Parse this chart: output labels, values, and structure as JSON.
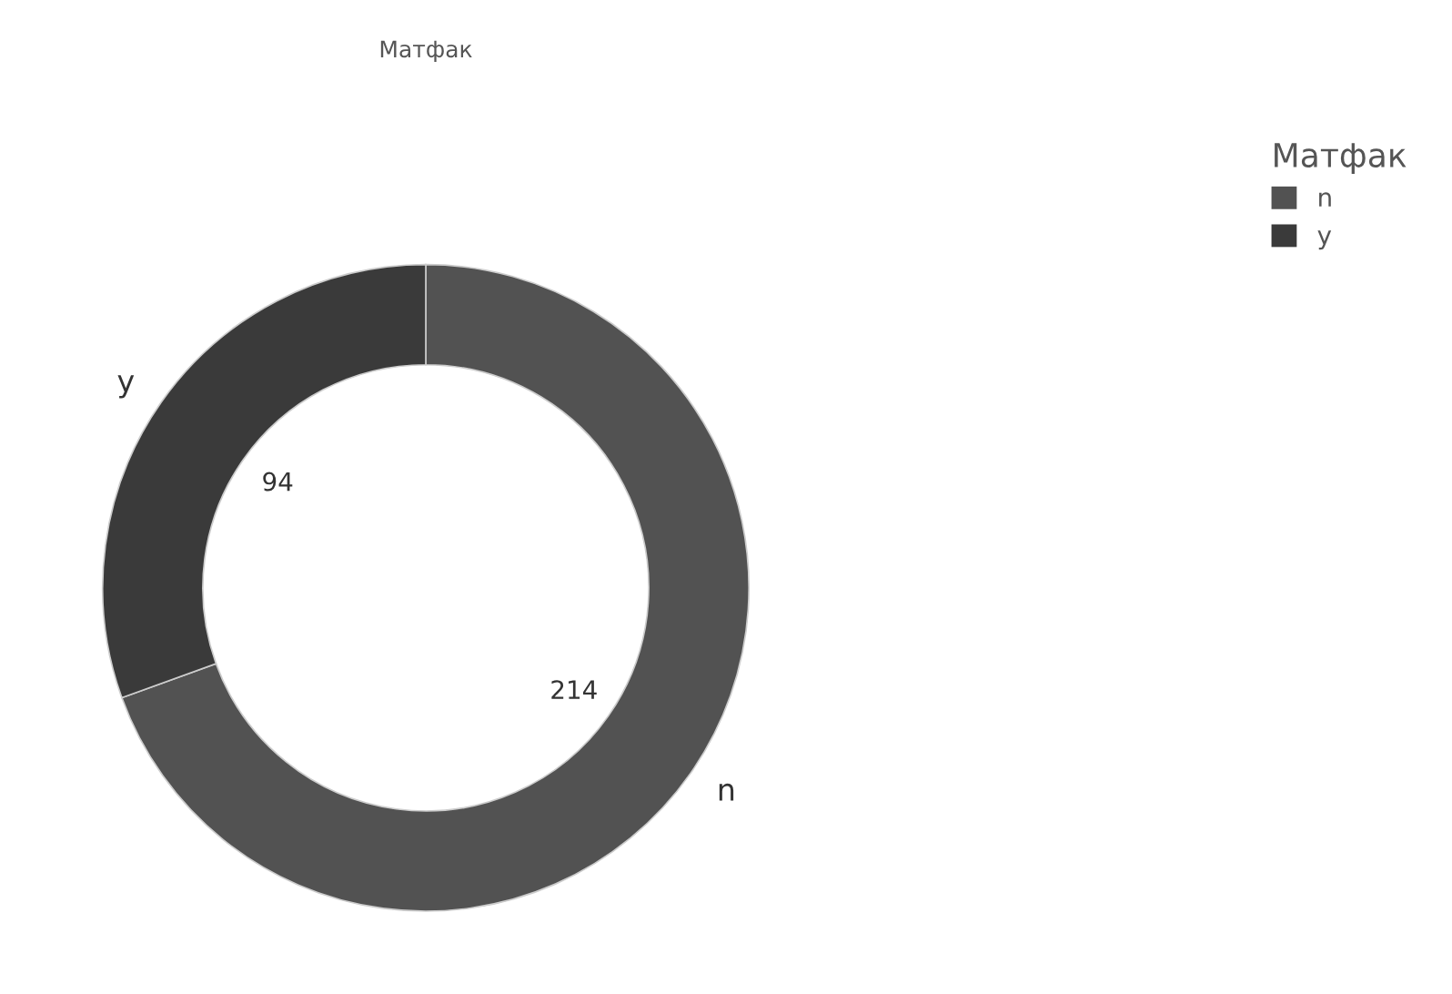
{
  "chart_data": {
    "type": "donut",
    "title": "Матфак",
    "legend_title": "Матфак",
    "categories": [
      "n",
      "y"
    ],
    "values": [
      214,
      94
    ],
    "colors": [
      "#525252",
      "#3a3a3a"
    ],
    "data_labels": true,
    "legend": "top right"
  }
}
